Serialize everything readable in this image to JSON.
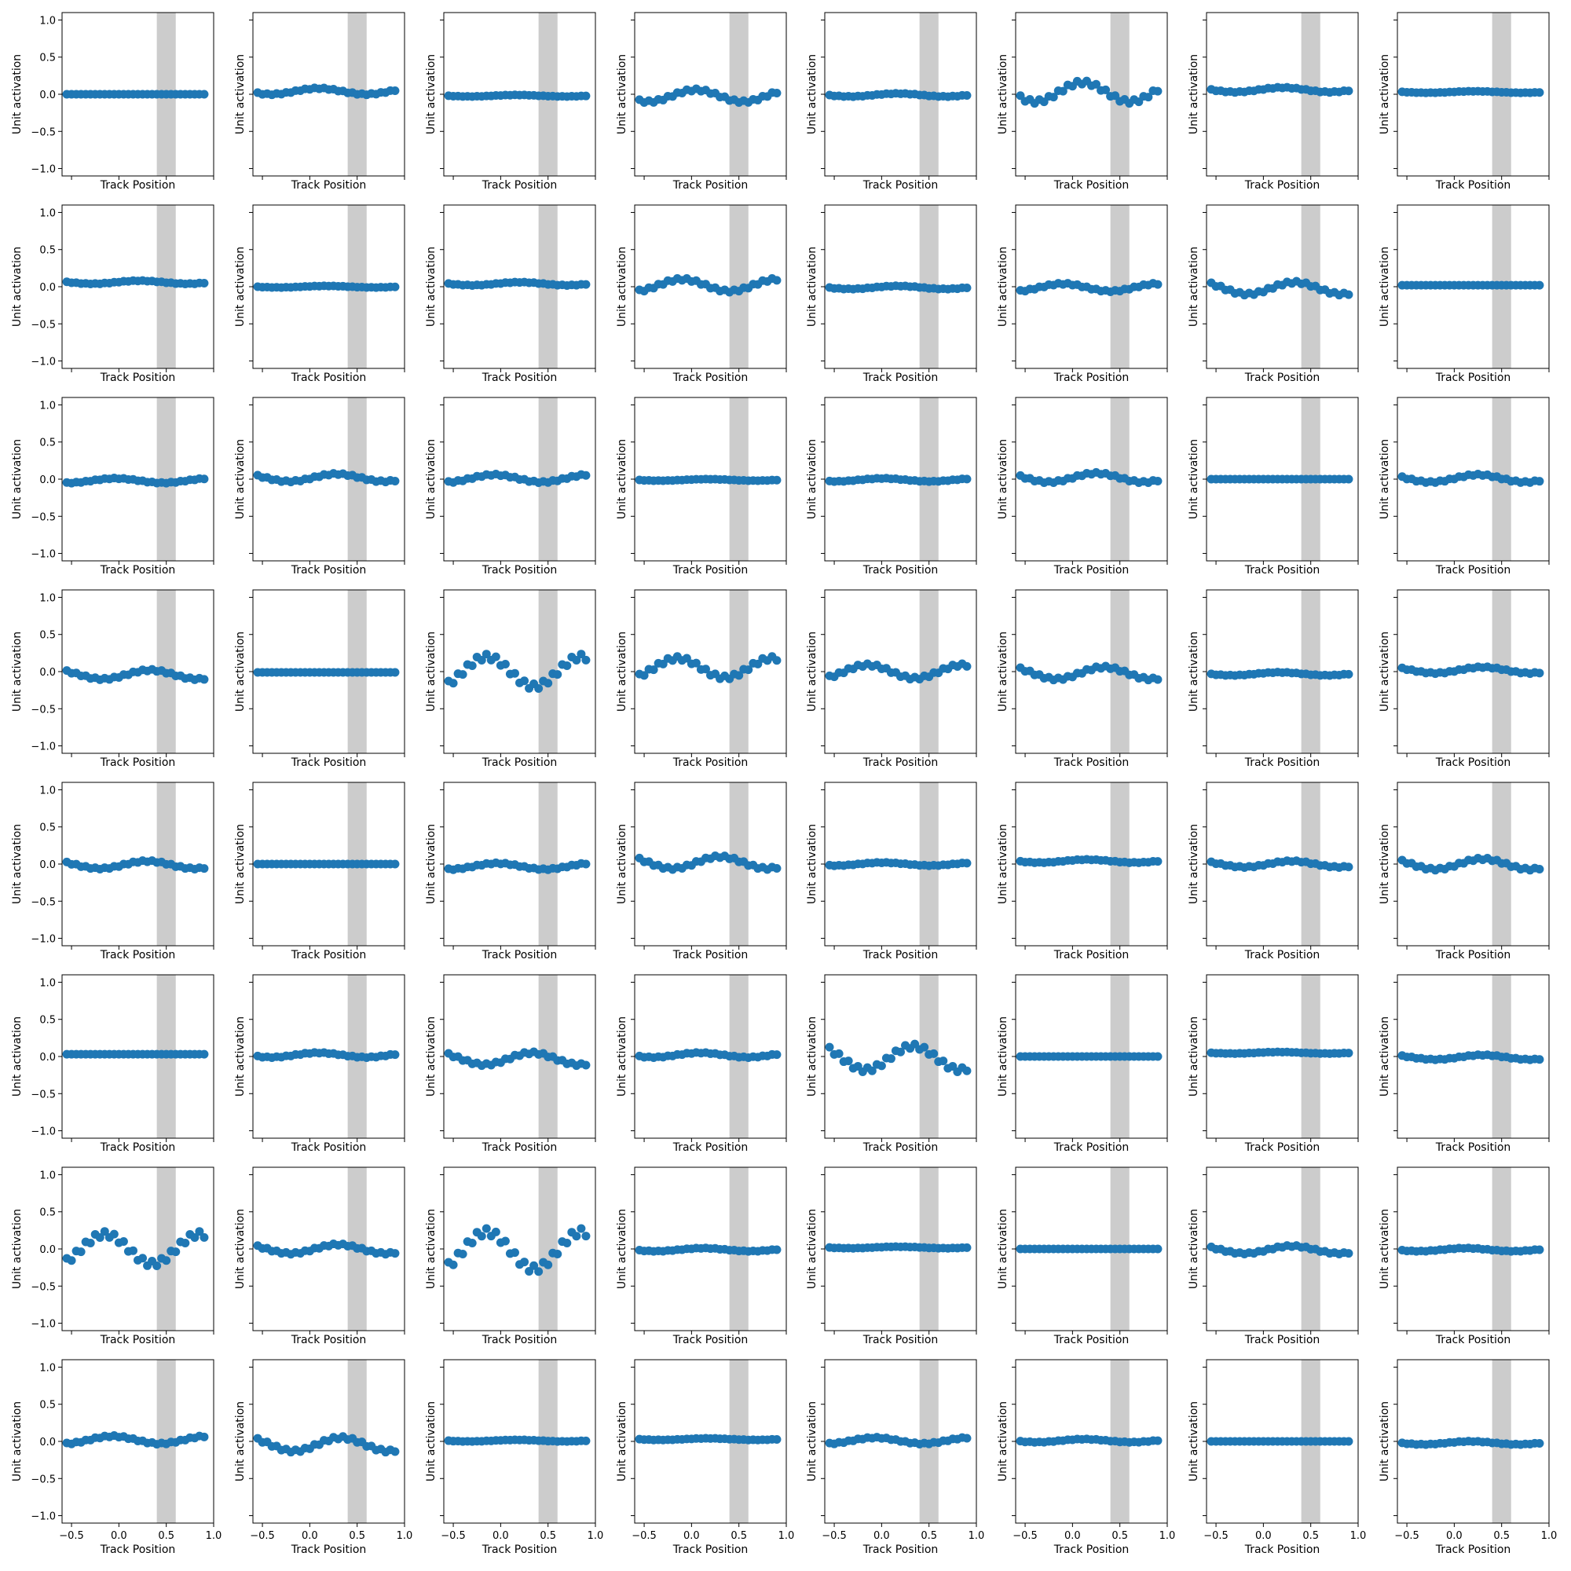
{
  "figure": {
    "rows": 8,
    "cols": 8,
    "xlabel": "Track Position",
    "ylabel": "Unit activation",
    "x_ticks": [
      -0.5,
      0.0,
      0.5,
      1.0
    ],
    "x_tick_labels": [
      "−0.5",
      "0.0",
      "0.5",
      "1.0"
    ],
    "y_ticks": [
      -1.0,
      -0.5,
      0.0,
      0.5,
      1.0
    ],
    "y_tick_labels": [
      "−1.0",
      "−0.5",
      "0.0",
      "0.5",
      "1.0"
    ],
    "xlim": [
      -0.6,
      1.0
    ],
    "ylim": [
      -1.1,
      1.1
    ],
    "shaded_region": [
      0.4,
      0.6
    ],
    "point_color": "#1f77b4",
    "shade_color": "#7f7f7f",
    "tick_labels_x_shown_on_last_row_only": true,
    "tick_labels_y_shown_on_first_column_only": true
  },
  "chart_data": {
    "type": "scatter",
    "panel_count": 64,
    "layout": "8 x 8 grid of panels, row-major",
    "x": [
      -0.55,
      -0.5,
      -0.45,
      -0.4,
      -0.35,
      -0.3,
      -0.25,
      -0.2,
      -0.15,
      -0.1,
      -0.05,
      0.0,
      0.05,
      0.1,
      0.15,
      0.2,
      0.25,
      0.3,
      0.35,
      0.4,
      0.45,
      0.5,
      0.55,
      0.6,
      0.65,
      0.7,
      0.75,
      0.8,
      0.85,
      0.9
    ],
    "panels": [
      {
        "amplitude": 0.0,
        "offset": 0.0,
        "phase": 0
      },
      {
        "amplitude": 0.04,
        "offset": 0.04,
        "phase": 1.0
      },
      {
        "amplitude": 0.01,
        "offset": -0.02,
        "phase": 0.5
      },
      {
        "amplitude": 0.08,
        "offset": -0.02,
        "phase": 1.3
      },
      {
        "amplitude": 0.02,
        "offset": -0.01,
        "phase": 0.5
      },
      {
        "amplitude": 0.13,
        "offset": 0.03,
        "phase": 0.9
      },
      {
        "amplitude": 0.03,
        "offset": 0.06,
        "phase": 0.3
      },
      {
        "amplitude": 0.01,
        "offset": 0.03,
        "phase": 0.2
      },
      {
        "amplitude": 0.02,
        "offset": 0.06,
        "phase": 0.2
      },
      {
        "amplitude": 0.01,
        "offset": 0.0,
        "phase": 0.5
      },
      {
        "amplitude": 0.02,
        "offset": 0.04,
        "phase": 0.3
      },
      {
        "amplitude": 0.08,
        "offset": 0.02,
        "phase": 2.2
      },
      {
        "amplitude": 0.02,
        "offset": -0.01,
        "phase": 0.5
      },
      {
        "amplitude": 0.05,
        "offset": -0.01,
        "phase": 2.2
      },
      {
        "amplitude": 0.08,
        "offset": -0.02,
        "phase": -0.5
      },
      {
        "amplitude": 0.0,
        "offset": 0.02,
        "phase": 0
      },
      {
        "amplitude": 0.03,
        "offset": -0.02,
        "phase": 1.8
      },
      {
        "amplitude": 0.05,
        "offset": 0.02,
        "phase": -0.2
      },
      {
        "amplitude": 0.05,
        "offset": 0.01,
        "phase": 2.0
      },
      {
        "amplitude": 0.01,
        "offset": -0.01,
        "phase": 0.5
      },
      {
        "amplitude": 0.02,
        "offset": -0.01,
        "phase": 1.5
      },
      {
        "amplitude": 0.06,
        "offset": 0.02,
        "phase": 0.0
      },
      {
        "amplitude": 0.0,
        "offset": 0.0,
        "phase": 0
      },
      {
        "amplitude": 0.05,
        "offset": 0.01,
        "phase": 0.0
      },
      {
        "amplitude": 0.06,
        "offset": -0.04,
        "phase": -0.5
      },
      {
        "amplitude": 0.0,
        "offset": -0.01,
        "phase": 0
      },
      {
        "amplitude": 0.2,
        "offset": 0.0,
        "phase": 2.5
      },
      {
        "amplitude": 0.13,
        "offset": 0.05,
        "phase": 2.5
      },
      {
        "amplitude": 0.09,
        "offset": 0.0,
        "phase": 2.5
      },
      {
        "amplitude": 0.08,
        "offset": -0.02,
        "phase": -0.5
      },
      {
        "amplitude": 0.02,
        "offset": -0.03,
        "phase": 0.5
      },
      {
        "amplitude": 0.04,
        "offset": 0.02,
        "phase": -0.3
      },
      {
        "amplitude": 0.05,
        "offset": -0.01,
        "phase": -0.3
      },
      {
        "amplitude": 0.0,
        "offset": 0.0,
        "phase": 0
      },
      {
        "amplitude": 0.04,
        "offset": -0.03,
        "phase": 1.8
      },
      {
        "amplitude": 0.08,
        "offset": 0.02,
        "phase": -0.3
      },
      {
        "amplitude": 0.02,
        "offset": 0.0,
        "phase": 1.5
      },
      {
        "amplitude": 0.02,
        "offset": 0.04,
        "phase": 0.6
      },
      {
        "amplitude": 0.04,
        "offset": 0.0,
        "phase": -0.3
      },
      {
        "amplitude": 0.07,
        "offset": 0.0,
        "phase": -0.3
      },
      {
        "amplitude": 0.0,
        "offset": 0.03,
        "phase": 0
      },
      {
        "amplitude": 0.03,
        "offset": 0.02,
        "phase": 1.0
      },
      {
        "amplitude": 0.08,
        "offset": -0.03,
        "phase": -0.5
      },
      {
        "amplitude": 0.03,
        "offset": 0.02,
        "phase": 1.0
      },
      {
        "amplitude": 0.16,
        "offset": -0.02,
        "phase": -0.5
      },
      {
        "amplitude": 0.0,
        "offset": 0.0,
        "phase": 0
      },
      {
        "amplitude": 0.01,
        "offset": 0.05,
        "phase": 0.5
      },
      {
        "amplitude": 0.03,
        "offset": -0.01,
        "phase": -0.3
      },
      {
        "amplitude": 0.2,
        "offset": 0.0,
        "phase": 2.5
      },
      {
        "amplitude": 0.06,
        "offset": 0.0,
        "phase": -0.3
      },
      {
        "amplitude": 0.25,
        "offset": -0.02,
        "phase": 2.5
      },
      {
        "amplitude": 0.02,
        "offset": -0.01,
        "phase": 0.8
      },
      {
        "amplitude": 0.01,
        "offset": 0.02,
        "phase": 0.5
      },
      {
        "amplitude": 0.0,
        "offset": 0.0,
        "phase": 0
      },
      {
        "amplitude": 0.05,
        "offset": -0.01,
        "phase": -0.3
      },
      {
        "amplitude": 0.02,
        "offset": -0.01,
        "phase": 0.8
      },
      {
        "amplitude": 0.05,
        "offset": 0.02,
        "phase": 2.0
      },
      {
        "amplitude": 0.09,
        "offset": -0.04,
        "phase": -0.5
      },
      {
        "amplitude": 0.01,
        "offset": 0.01,
        "phase": 0.5
      },
      {
        "amplitude": 0.01,
        "offset": 0.03,
        "phase": 0.5
      },
      {
        "amplitude": 0.04,
        "offset": 0.01,
        "phase": 2.0
      },
      {
        "amplitude": 0.02,
        "offset": 0.01,
        "phase": 0.8
      },
      {
        "amplitude": 0.0,
        "offset": 0.0,
        "phase": 0
      },
      {
        "amplitude": 0.02,
        "offset": -0.02,
        "phase": 0.5
      }
    ]
  }
}
